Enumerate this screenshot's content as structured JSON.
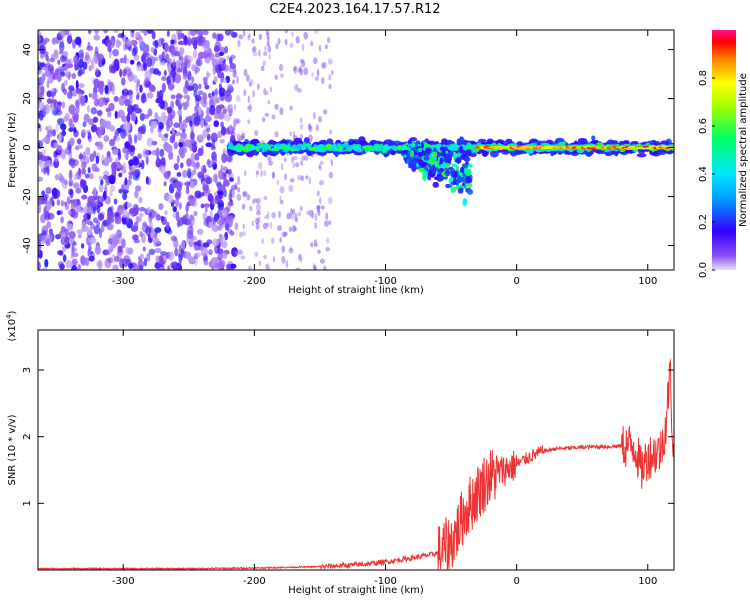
{
  "title": "C2E4.2023.164.17.57.R12",
  "colors": {
    "snr_line": "#ee3333",
    "spectrogram_low": "#a070ff"
  },
  "chart_data": [
    {
      "type": "heatmap",
      "xlabel": "Height of straight line (km)",
      "ylabel": "Frequency (Hz)",
      "xlim": [
        -365,
        120
      ],
      "ylim": [
        -50,
        48
      ],
      "xticks": [
        -300,
        -200,
        -100,
        0,
        100
      ],
      "yticks": [
        -40,
        -20,
        0,
        20,
        40
      ],
      "colorbar": {
        "label": "Normalized spectral amplitude",
        "range": [
          0,
          1
        ],
        "ticks": [
          "0.0",
          "0.2",
          "0.4",
          "0.6",
          "0.8"
        ],
        "colormap": "rainbow"
      },
      "grid": false,
      "features": [
        {
          "region": "noise",
          "x_range": [
            -365,
            -215
          ],
          "freq_range": [
            -50,
            48
          ],
          "amplitude": 0.1
        },
        {
          "region": "signal_band",
          "x_range": [
            -218,
            120
          ],
          "center_freq_hz": 0,
          "amplitude": 0.5
        },
        {
          "region": "scatter_spread",
          "x_range": [
            -85,
            -35
          ],
          "freq_range": [
            -35,
            12
          ],
          "amplitude": 0.45
        },
        {
          "region": "strong_core",
          "x_range": [
            -30,
            120
          ],
          "center_freq_hz": 0,
          "amplitude": 0.85
        }
      ]
    },
    {
      "type": "line",
      "xlabel": "Height of straight line (km)",
      "ylabel": "SNR (10 * v/v)",
      "y_multiplier": "(x10^4)",
      "xlim": [
        -365,
        120
      ],
      "ylim": [
        0,
        3.6
      ],
      "xticks": [
        -300,
        -200,
        -100,
        0,
        100
      ],
      "yticks": [
        1,
        2,
        3
      ],
      "grid": false,
      "series": [
        {
          "points": [
            [
              -365,
              0.02
            ],
            [
              -300,
              0.02
            ],
            [
              -250,
              0.02
            ],
            [
              -200,
              0.03
            ],
            [
              -150,
              0.05
            ],
            [
              -120,
              0.08
            ],
            [
              -100,
              0.12
            ],
            [
              -80,
              0.18
            ],
            [
              -60,
              0.25
            ],
            [
              -50,
              0.4
            ],
            [
              -45,
              0.6
            ],
            [
              -40,
              0.85
            ],
            [
              -35,
              1.0
            ],
            [
              -30,
              1.15
            ],
            [
              -25,
              1.3
            ],
            [
              -20,
              1.4
            ],
            [
              -15,
              1.45
            ],
            [
              -10,
              1.5
            ],
            [
              0,
              1.58
            ],
            [
              10,
              1.7
            ],
            [
              20,
              1.78
            ],
            [
              30,
              1.82
            ],
            [
              40,
              1.83
            ],
            [
              50,
              1.84
            ],
            [
              60,
              1.85
            ],
            [
              70,
              1.85
            ],
            [
              80,
              1.86
            ],
            [
              90,
              1.87
            ],
            [
              95,
              1.5
            ],
            [
              100,
              1.7
            ],
            [
              105,
              1.75
            ],
            [
              110,
              1.8
            ],
            [
              114,
              2.2
            ],
            [
              117,
              3.0
            ],
            [
              120,
              1.5
            ]
          ]
        }
      ]
    }
  ]
}
